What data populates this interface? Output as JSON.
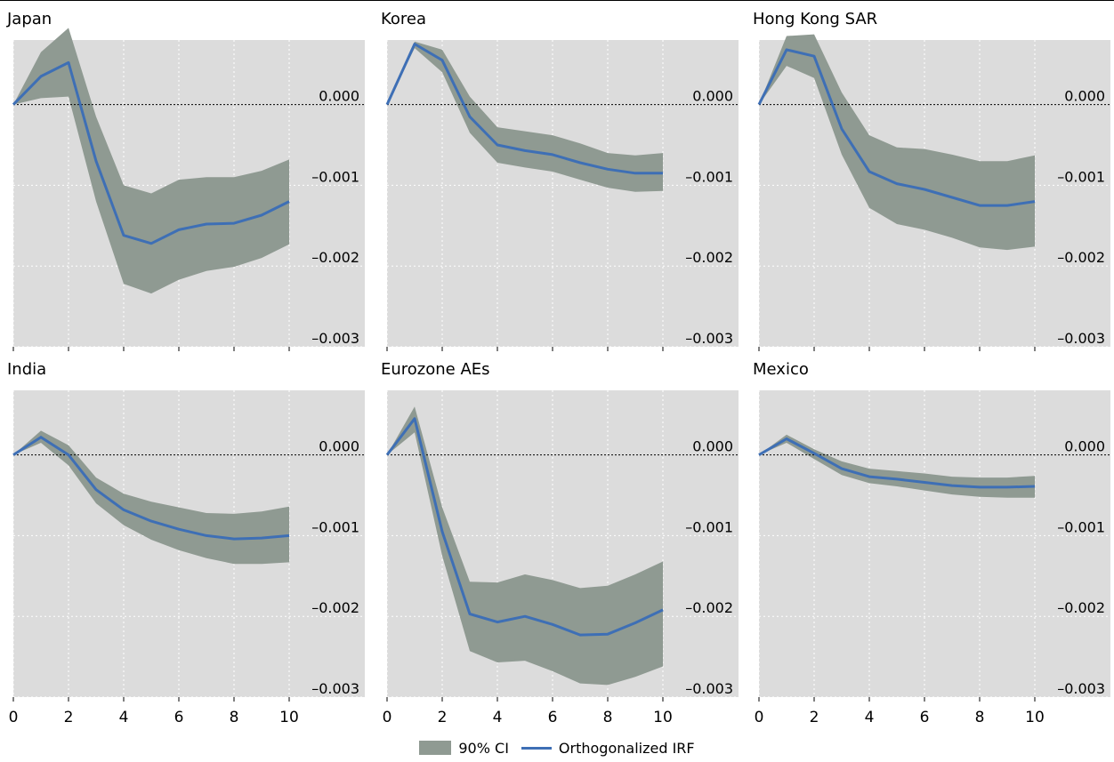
{
  "legend": {
    "ci_label": "90% CI",
    "irf_label": "Orthogonalized IRF",
    "ci_color": "#8f9a92",
    "irf_color": "#3e6fb5"
  },
  "chart_data": [
    {
      "type": "area",
      "title": "Japan",
      "x": [
        0,
        1,
        2,
        3,
        4,
        5,
        6,
        7,
        8,
        9,
        10
      ],
      "ylim": [
        -0.003,
        0.0008
      ],
      "yticks": [
        0.0,
        -0.001,
        -0.002,
        -0.003
      ],
      "ytick_labels": [
        "0.000",
        "–0.001",
        "–0.002",
        "–0.003"
      ],
      "xticks": [
        0,
        2,
        4,
        6,
        8,
        10
      ],
      "xtick_labels": [
        "0",
        "2",
        "4",
        "6",
        "8",
        "10"
      ],
      "series": [
        {
          "role": "irf",
          "values": [
            0,
            0.00035,
            0.00052,
            -0.0007,
            -0.00162,
            -0.00172,
            -0.00155,
            -0.00148,
            -0.00147,
            -0.00137,
            -0.0012
          ]
        },
        {
          "role": "ci_upper",
          "values": [
            0,
            0.00065,
            0.00095,
            -0.00015,
            -0.001,
            -0.0011,
            -0.00093,
            -0.0009,
            -0.0009,
            -0.00082,
            -0.00068
          ]
        },
        {
          "role": "ci_lower",
          "values": [
            0,
            8e-05,
            0.0001,
            -0.0012,
            -0.00222,
            -0.00234,
            -0.00217,
            -0.00206,
            -0.00201,
            -0.0019,
            -0.00173
          ]
        }
      ]
    },
    {
      "type": "area",
      "title": "Korea",
      "x": [
        0,
        1,
        2,
        3,
        4,
        5,
        6,
        7,
        8,
        9,
        10
      ],
      "ylim": [
        -0.003,
        0.0008
      ],
      "yticks": [
        0.0,
        -0.001,
        -0.002,
        -0.003
      ],
      "ytick_labels": [
        "0.000",
        "–0.001",
        "–0.002",
        "–0.003"
      ],
      "xticks": [
        0,
        2,
        4,
        6,
        8,
        10
      ],
      "xtick_labels": [
        "0",
        "2",
        "4",
        "6",
        "8",
        "10"
      ],
      "series": [
        {
          "role": "irf",
          "values": [
            0,
            0.00075,
            0.00055,
            -0.00015,
            -0.0005,
            -0.00057,
            -0.00062,
            -0.00072,
            -0.0008,
            -0.00085,
            -0.00085
          ]
        },
        {
          "role": "ci_upper",
          "values": [
            0,
            0.00078,
            0.00068,
            0.0001,
            -0.00028,
            -0.00033,
            -0.00038,
            -0.00048,
            -0.0006,
            -0.00063,
            -0.0006
          ]
        },
        {
          "role": "ci_lower",
          "values": [
            0,
            0.0007,
            0.0004,
            -0.00035,
            -0.00072,
            -0.00078,
            -0.00083,
            -0.00093,
            -0.00103,
            -0.00108,
            -0.00107
          ]
        }
      ]
    },
    {
      "type": "area",
      "title": "Hong Kong SAR",
      "x": [
        0,
        1,
        2,
        3,
        4,
        5,
        6,
        7,
        8,
        9,
        10
      ],
      "ylim": [
        -0.003,
        0.0008
      ],
      "yticks": [
        0.0,
        -0.001,
        -0.002,
        -0.003
      ],
      "ytick_labels": [
        "0.000",
        "–0.001",
        "–0.002",
        "–0.003"
      ],
      "xticks": [
        0,
        2,
        4,
        6,
        8,
        10
      ],
      "xtick_labels": [
        "0",
        "2",
        "4",
        "6",
        "8",
        "10"
      ],
      "series": [
        {
          "role": "irf",
          "values": [
            0,
            0.00068,
            0.0006,
            -0.0003,
            -0.00083,
            -0.00098,
            -0.00105,
            -0.00115,
            -0.00125,
            -0.00125,
            -0.0012
          ]
        },
        {
          "role": "ci_upper",
          "values": [
            0,
            0.00085,
            0.00087,
            0.00015,
            -0.00038,
            -0.00053,
            -0.00055,
            -0.00062,
            -0.0007,
            -0.0007,
            -0.00063
          ]
        },
        {
          "role": "ci_lower",
          "values": [
            0,
            0.00048,
            0.00033,
            -0.00062,
            -0.00128,
            -0.00148,
            -0.00155,
            -0.00165,
            -0.00177,
            -0.0018,
            -0.00176
          ]
        }
      ]
    },
    {
      "type": "area",
      "title": "India",
      "x": [
        0,
        1,
        2,
        3,
        4,
        5,
        6,
        7,
        8,
        9,
        10
      ],
      "ylim": [
        -0.003,
        0.0008
      ],
      "yticks": [
        0.0,
        -0.001,
        -0.002,
        -0.003
      ],
      "ytick_labels": [
        "0.000",
        "–0.001",
        "–0.002",
        "–0.003"
      ],
      "xticks": [
        0,
        2,
        4,
        6,
        8,
        10
      ],
      "xtick_labels": [
        "0",
        "2",
        "4",
        "6",
        "8",
        "10"
      ],
      "series": [
        {
          "role": "irf",
          "values": [
            0,
            0.00022,
            0,
            -0.00043,
            -0.00068,
            -0.00082,
            -0.00092,
            -0.001,
            -0.00104,
            -0.00103,
            -0.001
          ]
        },
        {
          "role": "ci_upper",
          "values": [
            0,
            0.0003,
            0.00012,
            -0.00028,
            -0.00048,
            -0.00058,
            -0.00065,
            -0.00072,
            -0.00073,
            -0.0007,
            -0.00064
          ]
        },
        {
          "role": "ci_lower",
          "values": [
            0,
            0.00015,
            -0.00013,
            -0.0006,
            -0.00087,
            -0.00105,
            -0.00118,
            -0.00128,
            -0.00135,
            -0.00135,
            -0.00133
          ]
        }
      ]
    },
    {
      "type": "area",
      "title": "Eurozone AEs",
      "x": [
        0,
        1,
        2,
        3,
        4,
        5,
        6,
        7,
        8,
        9,
        10
      ],
      "ylim": [
        -0.003,
        0.0008
      ],
      "yticks": [
        0.0,
        -0.001,
        -0.002,
        -0.003
      ],
      "ytick_labels": [
        "0.000",
        "–0.001",
        "–0.002",
        "–0.003"
      ],
      "xticks": [
        0,
        2,
        4,
        6,
        8,
        10
      ],
      "xtick_labels": [
        "0",
        "2",
        "4",
        "6",
        "8",
        "10"
      ],
      "series": [
        {
          "role": "irf",
          "values": [
            0,
            0.00045,
            -0.00095,
            -0.00197,
            -0.00207,
            -0.002,
            -0.0021,
            -0.00223,
            -0.00222,
            -0.00208,
            -0.00192
          ]
        },
        {
          "role": "ci_upper",
          "values": [
            0,
            0.0006,
            -0.00065,
            -0.00157,
            -0.00158,
            -0.00148,
            -0.00155,
            -0.00165,
            -0.00162,
            -0.00148,
            -0.00132
          ]
        },
        {
          "role": "ci_lower",
          "values": [
            0,
            0.00028,
            -0.00125,
            -0.00243,
            -0.00257,
            -0.00255,
            -0.00268,
            -0.00283,
            -0.00285,
            -0.00275,
            -0.00262
          ]
        }
      ]
    },
    {
      "type": "area",
      "title": "Mexico",
      "x": [
        0,
        1,
        2,
        3,
        4,
        5,
        6,
        7,
        8,
        9,
        10
      ],
      "ylim": [
        -0.003,
        0.0008
      ],
      "yticks": [
        0.0,
        -0.001,
        -0.002,
        -0.003
      ],
      "ytick_labels": [
        "0.000",
        "–0.001",
        "–0.002",
        "–0.003"
      ],
      "xticks": [
        0,
        2,
        4,
        6,
        8,
        10
      ],
      "xtick_labels": [
        "0",
        "2",
        "4",
        "6",
        "8",
        "10"
      ],
      "series": [
        {
          "role": "irf",
          "values": [
            0,
            0.0002,
            2e-05,
            -0.00017,
            -0.00027,
            -0.0003,
            -0.00034,
            -0.00038,
            -0.0004,
            -0.0004,
            -0.00039
          ]
        },
        {
          "role": "ci_upper",
          "values": [
            0,
            0.00025,
            7e-05,
            -8e-05,
            -0.00017,
            -0.0002,
            -0.00023,
            -0.00027,
            -0.00028,
            -0.00028,
            -0.00026
          ]
        },
        {
          "role": "ci_lower",
          "values": [
            0,
            0.00015,
            -5e-05,
            -0.00025,
            -0.00035,
            -0.00039,
            -0.00044,
            -0.00049,
            -0.00052,
            -0.00053,
            -0.00053
          ]
        }
      ]
    }
  ]
}
